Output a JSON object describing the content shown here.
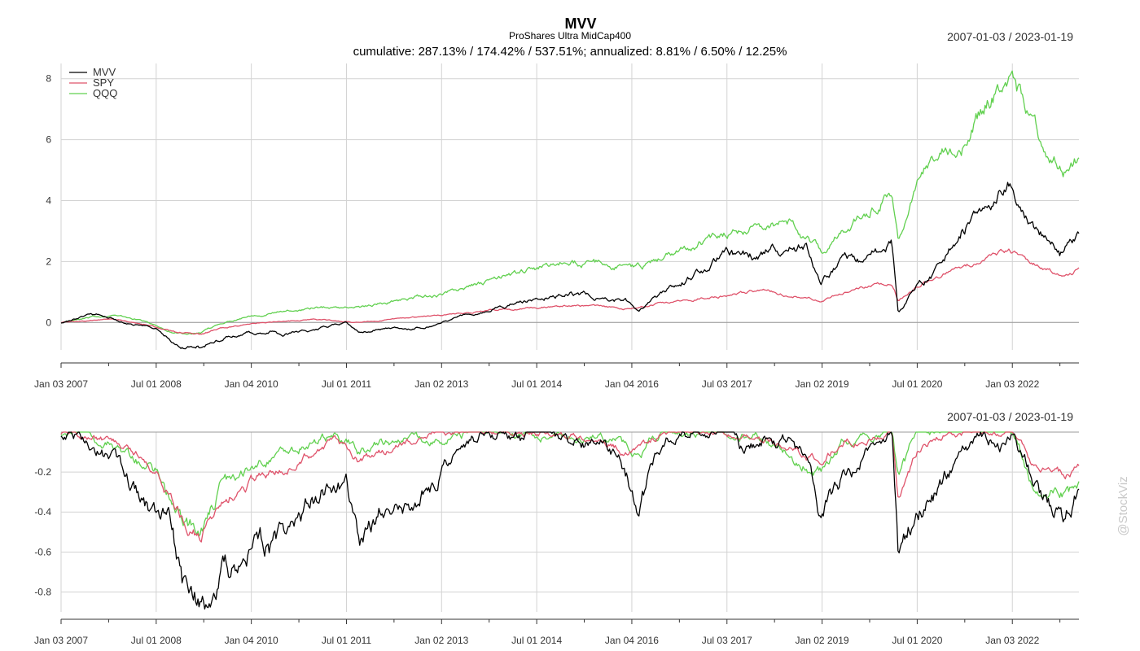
{
  "header": {
    "title": "MVV",
    "subtitle": "ProShares Ultra MidCap400",
    "stats": "cumulative: 287.13% / 174.42% / 537.51%; annualized: 8.81% / 6.50% / 12.25%",
    "range_top": "2007-01-03 / 2023-01-19",
    "range_bottom": "2007-01-03 / 2023-01-19"
  },
  "watermark": "@StockViz",
  "colors": {
    "MVV": "#000000",
    "SPY": "#DF536B",
    "QQQ": "#61D04F",
    "grid": "#d3d3d3",
    "zero": "#999999"
  },
  "chart_data": [
    {
      "type": "line",
      "title": "MVV",
      "x_tick_labels": [
        "Jan 03 2007",
        "Jul 01 2008",
        "Jan 04 2010",
        "Jul 01 2011",
        "Jan 02 2013",
        "Jul 01 2014",
        "Jan 04 2016",
        "Jul 03 2017",
        "Jan 02 2019",
        "Jul 01 2020",
        "Jan 03 2022"
      ],
      "x_ticks": [
        2007.0,
        2008.5,
        2010.0,
        2011.5,
        2013.0,
        2014.5,
        2016.0,
        2017.5,
        2019.0,
        2020.5,
        2022.0
      ],
      "xlim": [
        2007.0,
        2023.05
      ],
      "ylim": [
        -0.9,
        8.5
      ],
      "y_ticks": [
        0,
        2,
        4,
        6,
        8
      ],
      "legend": [
        "MVV",
        "SPY",
        "QQQ"
      ],
      "legend_position": "top-left",
      "grid": true,
      "series": [
        {
          "name": "MVV",
          "x": [
            2007.0,
            2007.3,
            2007.6,
            2007.85,
            2008.2,
            2008.5,
            2008.75,
            2008.95,
            2009.2,
            2009.5,
            2009.8,
            2010.3,
            2010.5,
            2010.8,
            2011.3,
            2011.5,
            2011.7,
            2012.0,
            2012.5,
            2012.8,
            2013.0,
            2013.5,
            2014.0,
            2014.5,
            2015.0,
            2015.5,
            2015.9,
            2016.1,
            2016.5,
            2017.0,
            2017.5,
            2017.9,
            2018.3,
            2018.75,
            2018.98,
            2019.3,
            2019.7,
            2020.1,
            2020.2,
            2020.5,
            2020.9,
            2021.2,
            2021.5,
            2021.75,
            2021.95,
            2022.25,
            2022.5,
            2022.75,
            2022.95,
            2023.05
          ],
          "values": [
            0.0,
            0.15,
            0.25,
            0.1,
            -0.1,
            -0.15,
            -0.55,
            -0.75,
            -0.8,
            -0.55,
            -0.4,
            -0.3,
            -0.45,
            -0.3,
            -0.1,
            0.0,
            -0.4,
            -0.2,
            -0.2,
            -0.1,
            0.0,
            0.3,
            0.55,
            0.75,
            1.0,
            0.85,
            0.7,
            0.35,
            1.0,
            1.6,
            2.2,
            2.2,
            2.4,
            2.45,
            1.2,
            2.0,
            2.1,
            2.6,
            0.3,
            1.2,
            1.8,
            3.0,
            3.7,
            3.7,
            4.6,
            3.5,
            2.9,
            2.2,
            2.6,
            3.0
          ]
        },
        {
          "name": "SPY",
          "x": [
            2007.0,
            2007.8,
            2008.3,
            2008.75,
            2009.2,
            2009.5,
            2010.0,
            2011.0,
            2011.7,
            2012.5,
            2013.0,
            2014.0,
            2015.0,
            2015.9,
            2016.5,
            2017.5,
            2018.0,
            2018.98,
            2019.5,
            2020.1,
            2020.2,
            2020.6,
            2021.0,
            2021.5,
            2021.95,
            2022.4,
            2022.8,
            2023.05
          ],
          "values": [
            0.0,
            0.1,
            -0.05,
            -0.3,
            -0.4,
            -0.2,
            -0.05,
            0.1,
            0.0,
            0.15,
            0.25,
            0.45,
            0.55,
            0.45,
            0.65,
            0.9,
            1.05,
            0.75,
            1.1,
            1.35,
            0.75,
            1.3,
            1.65,
            2.0,
            2.35,
            1.9,
            1.55,
            1.75
          ]
        },
        {
          "name": "QQQ",
          "x": [
            2007.0,
            2007.8,
            2008.3,
            2008.75,
            2009.2,
            2009.5,
            2010.0,
            2010.5,
            2011.0,
            2011.7,
            2012.5,
            2013.0,
            2014.0,
            2015.0,
            2016.1,
            2016.5,
            2017.5,
            2018.5,
            2018.98,
            2019.5,
            2020.1,
            2020.2,
            2020.7,
            2021.2,
            2021.5,
            2021.95,
            2022.3,
            2022.8,
            2023.05
          ],
          "values": [
            0.0,
            0.25,
            0.05,
            -0.3,
            -0.4,
            -0.05,
            0.25,
            0.35,
            0.5,
            0.5,
            0.8,
            0.9,
            1.5,
            2.0,
            1.8,
            2.1,
            3.0,
            3.3,
            2.3,
            3.3,
            4.3,
            2.9,
            5.3,
            5.9,
            6.9,
            8.4,
            6.5,
            5.1,
            5.5
          ]
        }
      ]
    },
    {
      "type": "line",
      "title": "",
      "x_tick_labels": [
        "Jan 03 2007",
        "Jul 01 2008",
        "Jan 04 2010",
        "Jul 01 2011",
        "Jan 02 2013",
        "Jul 01 2014",
        "Jan 04 2016",
        "Jul 03 2017",
        "Jan 02 2019",
        "Jul 01 2020",
        "Jan 03 2022"
      ],
      "x_ticks": [
        2007.0,
        2008.5,
        2010.0,
        2011.5,
        2013.0,
        2014.5,
        2016.0,
        2017.5,
        2019.0,
        2020.5,
        2022.0
      ],
      "xlim": [
        2007.0,
        2023.05
      ],
      "ylim": [
        -0.9,
        0.0
      ],
      "y_ticks": [
        -0.2,
        -0.4,
        -0.6,
        -0.8
      ],
      "grid": true,
      "series": [
        {
          "name": "MVV",
          "x": [
            2007.0,
            2007.5,
            2007.8,
            2008.2,
            2008.5,
            2008.75,
            2008.95,
            2009.2,
            2009.5,
            2010.0,
            2010.3,
            2010.5,
            2010.8,
            2011.3,
            2011.5,
            2011.7,
            2011.9,
            2012.3,
            2012.5,
            2012.8,
            2013.0,
            2013.4,
            2013.7,
            2014.0,
            2014.3,
            2014.5,
            2014.7,
            2015.0,
            2015.5,
            2015.8,
            2016.0,
            2016.1,
            2016.5,
            2017.0,
            2017.5,
            2017.8,
            2018.2,
            2018.5,
            2018.8,
            2018.98,
            2019.2,
            2019.5,
            2019.8,
            2020.1,
            2020.2,
            2020.5,
            2020.8,
            2021.2,
            2021.5,
            2021.8,
            2022.0,
            2022.3,
            2022.5,
            2022.8,
            2022.95,
            2023.05
          ],
          "values": [
            0.0,
            -0.05,
            -0.15,
            -0.3,
            -0.4,
            -0.5,
            -0.8,
            -0.85,
            -0.75,
            -0.55,
            -0.6,
            -0.5,
            -0.4,
            -0.25,
            -0.28,
            -0.55,
            -0.45,
            -0.3,
            -0.35,
            -0.3,
            -0.2,
            -0.05,
            0.0,
            0.0,
            -0.05,
            0.0,
            -0.02,
            -0.05,
            -0.05,
            -0.15,
            -0.3,
            -0.35,
            -0.05,
            0.0,
            0.0,
            -0.1,
            -0.05,
            -0.05,
            -0.15,
            -0.4,
            -0.3,
            -0.2,
            -0.05,
            0.0,
            -0.65,
            -0.4,
            -0.3,
            -0.1,
            0.0,
            -0.05,
            0.0,
            -0.2,
            -0.35,
            -0.45,
            -0.35,
            -0.3
          ]
        },
        {
          "name": "SPY",
          "x": [
            2007.0,
            2007.5,
            2007.8,
            2008.2,
            2008.5,
            2008.75,
            2009.0,
            2009.2,
            2009.5,
            2010.0,
            2010.3,
            2010.5,
            2011.0,
            2011.3,
            2011.7,
            2012.0,
            2012.5,
            2013.0,
            2013.5,
            2014.0,
            2015.5,
            2015.9,
            2016.1,
            2016.5,
            2018.0,
            2018.98,
            2019.3,
            2020.1,
            2020.2,
            2020.5,
            2021.0,
            2022.0,
            2022.3,
            2022.8,
            2023.05
          ],
          "values": [
            0.0,
            -0.02,
            -0.05,
            -0.1,
            -0.2,
            -0.35,
            -0.48,
            -0.52,
            -0.35,
            -0.25,
            -0.2,
            -0.18,
            -0.1,
            -0.05,
            -0.15,
            -0.1,
            -0.05,
            0.0,
            0.0,
            0.0,
            -0.02,
            -0.1,
            -0.1,
            0.0,
            -0.02,
            -0.15,
            -0.05,
            0.0,
            -0.33,
            -0.1,
            0.0,
            0.0,
            -0.15,
            -0.22,
            -0.17
          ]
        },
        {
          "name": "QQQ",
          "x": [
            2007.0,
            2007.5,
            2007.8,
            2008.2,
            2008.5,
            2008.75,
            2009.0,
            2009.2,
            2009.5,
            2010.0,
            2010.3,
            2010.5,
            2011.0,
            2011.3,
            2011.7,
            2012.0,
            2012.5,
            2013.0,
            2013.5,
            2014.0,
            2015.5,
            2015.9,
            2016.1,
            2016.5,
            2018.0,
            2018.98,
            2019.3,
            2020.1,
            2020.2,
            2020.5,
            2021.0,
            2022.0,
            2022.3,
            2022.8,
            2023.05
          ],
          "values": [
            0.0,
            -0.02,
            -0.05,
            -0.15,
            -0.2,
            -0.35,
            -0.48,
            -0.5,
            -0.3,
            -0.15,
            -0.12,
            -0.1,
            -0.05,
            -0.02,
            -0.1,
            -0.05,
            -0.02,
            -0.05,
            0.0,
            0.0,
            -0.02,
            -0.08,
            -0.1,
            0.0,
            -0.02,
            -0.2,
            -0.05,
            0.0,
            -0.25,
            0.0,
            0.0,
            0.0,
            -0.25,
            -0.33,
            -0.3
          ]
        }
      ]
    }
  ]
}
